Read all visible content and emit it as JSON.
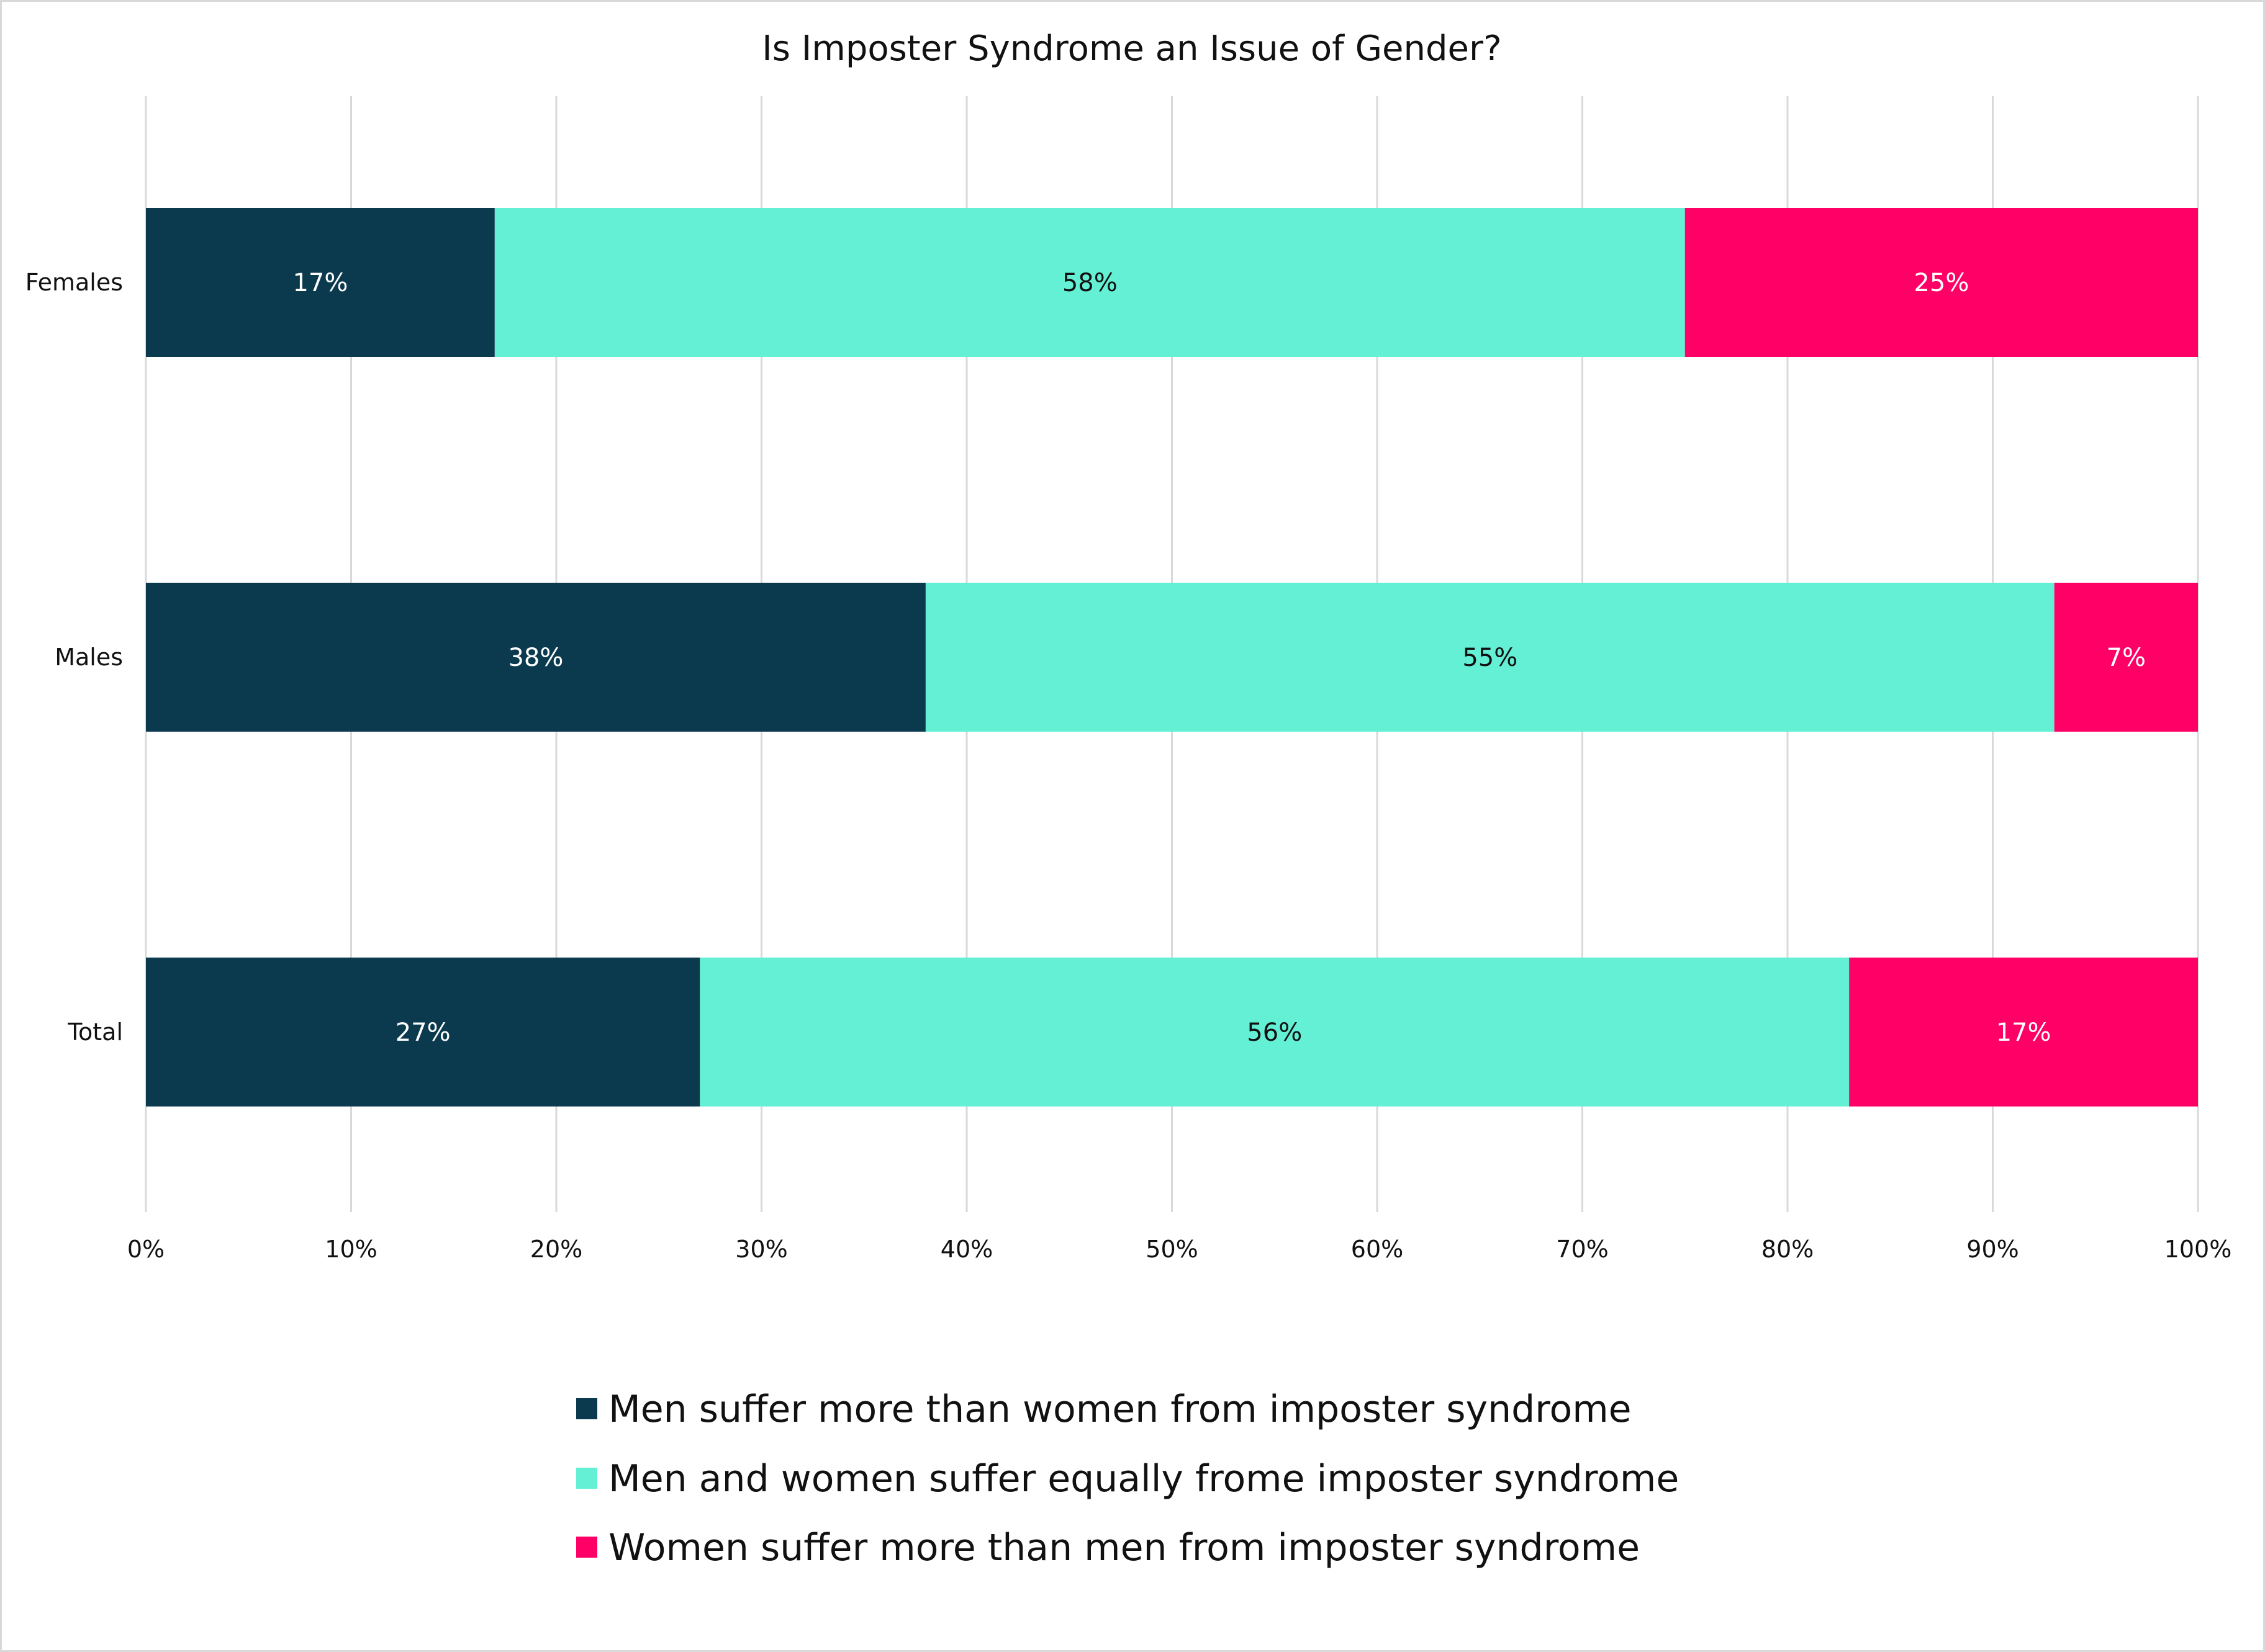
{
  "chart_data": {
    "type": "bar",
    "orientation": "horizontal",
    "stacked": true,
    "title": "Is Imposter Syndrome an Issue of Gender?",
    "categories": [
      "Females",
      "Males",
      "Total"
    ],
    "series": [
      {
        "name": "Men suffer more than women from imposter syndrome",
        "color": "#0b3a4f",
        "label_color": "#ffffff",
        "values": [
          17,
          38,
          27
        ]
      },
      {
        "name": "Men and women suffer equally frome imposter syndrome",
        "color": "#64f0d4",
        "label_color": "#111111",
        "values": [
          58,
          55,
          56
        ]
      },
      {
        "name": "Women suffer more than men from imposter syndrome",
        "color": "#ff0066",
        "label_color": "#ffffff",
        "values": [
          25,
          7,
          17
        ]
      }
    ],
    "data_labels": [
      [
        "17%",
        "38%",
        "27%"
      ],
      [
        "58%",
        "55%",
        "56%"
      ],
      [
        "25%",
        "7%",
        "17%"
      ]
    ],
    "xlim": [
      0,
      100
    ],
    "x_ticks": [
      0,
      10,
      20,
      30,
      40,
      50,
      60,
      70,
      80,
      90,
      100
    ],
    "x_tick_labels": [
      "0%",
      "10%",
      "20%",
      "30%",
      "40%",
      "50%",
      "60%",
      "70%",
      "80%",
      "90%",
      "100%"
    ],
    "xlabel": "",
    "ylabel": "",
    "grid": "vertical",
    "legend": "bottom"
  }
}
